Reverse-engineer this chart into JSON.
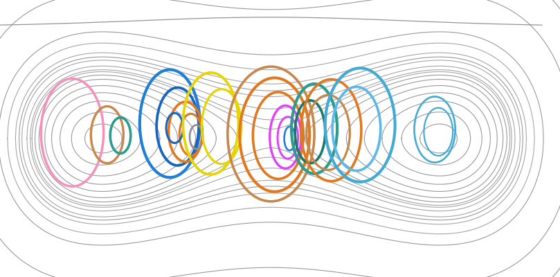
{
  "figsize": [
    8.09,
    4.0
  ],
  "dpi": 100,
  "bg_color": "#ffffff",
  "gray_color": "#888888",
  "gray_lw": 0.8
}
